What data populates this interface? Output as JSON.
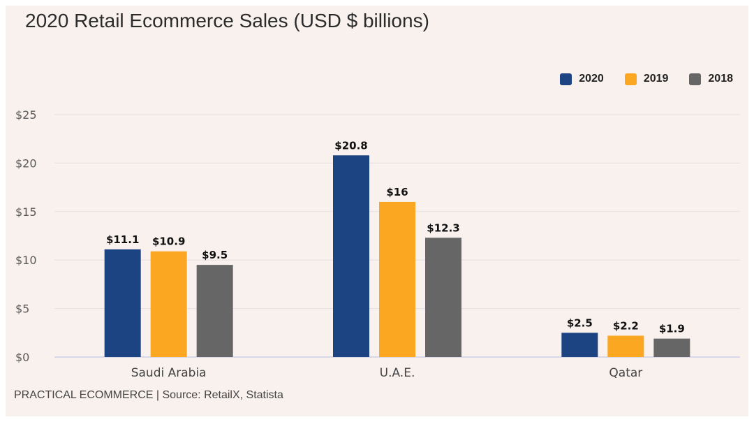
{
  "chart_data": {
    "type": "bar",
    "title": "2020 Retail Ecommerce Sales (USD $ billions)",
    "categories": [
      "Saudi Arabia",
      "U.A.E.",
      "Qatar"
    ],
    "series": [
      {
        "name": "2020",
        "color": "#1c4382",
        "values": [
          11.1,
          20.8,
          2.5
        ],
        "labels": [
          "$11.1",
          "$20.8",
          "$2.5"
        ]
      },
      {
        "name": "2019",
        "color": "#fba722",
        "values": [
          10.9,
          16,
          2.2
        ],
        "labels": [
          "$10.9",
          "$16",
          "$2.2"
        ]
      },
      {
        "name": "2018",
        "color": "#666666",
        "values": [
          9.5,
          12.3,
          1.9
        ],
        "labels": [
          "$9.5",
          "$12.3",
          "$1.9"
        ]
      }
    ],
    "yticks": [
      0,
      5,
      10,
      15,
      20,
      25
    ],
    "ytick_labels": [
      "$0",
      "$5",
      "$10",
      "$15",
      "$20",
      "$25"
    ],
    "ylim": [
      0,
      25
    ],
    "xlabel": "",
    "ylabel": "",
    "grid": true,
    "legend_position": "top-right"
  },
  "footer": "PRACTICAL ECOMMERCE | Source: RetailX, Statista"
}
